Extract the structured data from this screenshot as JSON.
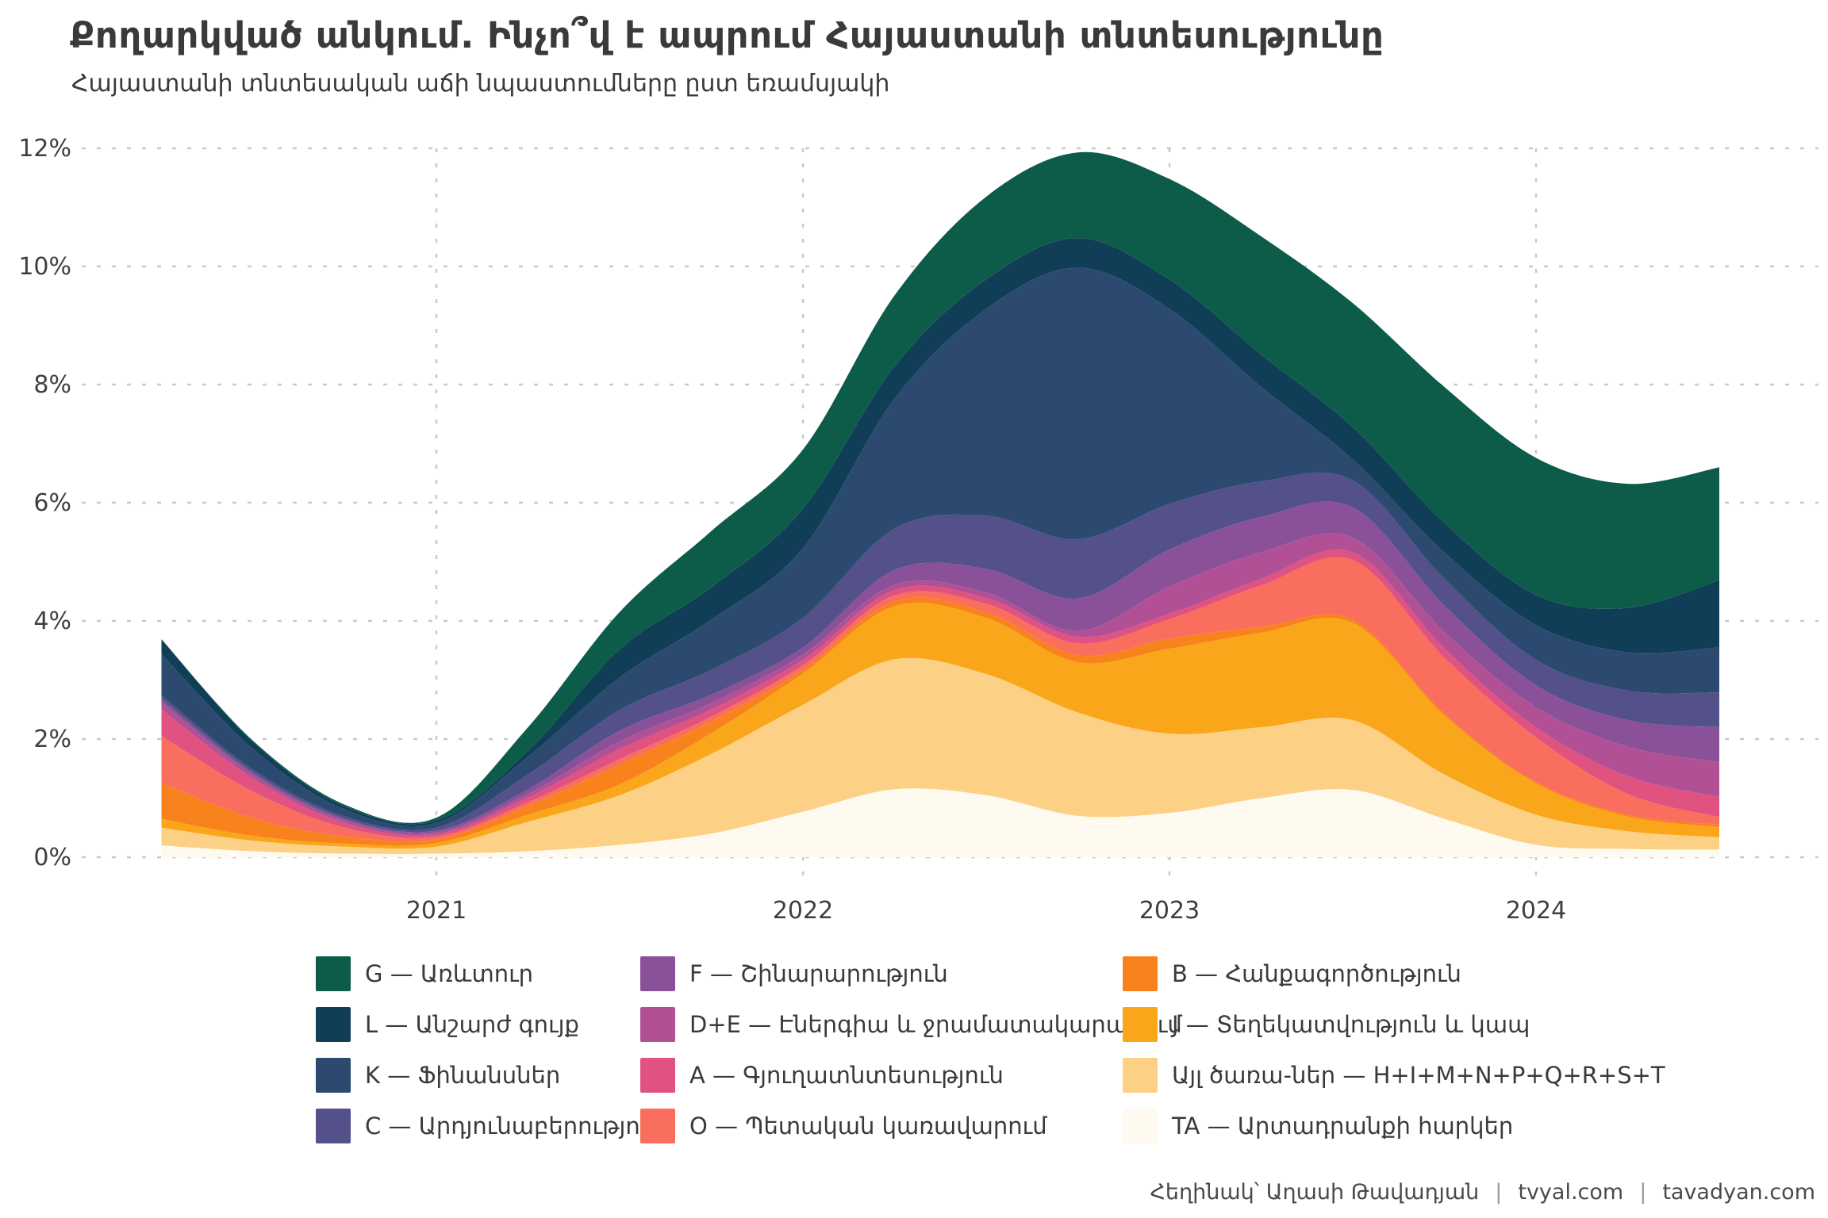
{
  "title": "Քողարկված անկում. Ինչո՞վ է ապրում Հայաստանի տնտեսությունը",
  "subtitle": "Հայաստանի տնտեսական աճի նպաստումները ըստ եռամսյակի",
  "footer": {
    "author": "Հեղինակ՝ Աղասի Թավադյան",
    "site1": "tvyal.com",
    "site2": "tavadyan.com"
  },
  "chart_data": {
    "type": "area",
    "stacked": true,
    "grid": "dotted",
    "x": [
      2020.25,
      2020.5,
      2020.75,
      2021.0,
      2021.25,
      2021.5,
      2021.75,
      2022.0,
      2022.25,
      2022.5,
      2022.75,
      2023.0,
      2023.25,
      2023.5,
      2023.75,
      2024.0,
      2024.25,
      2024.5
    ],
    "xlim": [
      2020.25,
      2024.5
    ],
    "ylim": [
      0,
      12
    ],
    "y_ticks": [
      {
        "value": 0,
        "label": "0%"
      },
      {
        "value": 2,
        "label": "2%"
      },
      {
        "value": 4,
        "label": "4%"
      },
      {
        "value": 6,
        "label": "6%"
      },
      {
        "value": 8,
        "label": "8%"
      },
      {
        "value": 10,
        "label": "10%"
      },
      {
        "value": 12,
        "label": "12%"
      }
    ],
    "x_ticks": [
      {
        "value": 2021,
        "label": "2021"
      },
      {
        "value": 2022,
        "label": "2022"
      },
      {
        "value": 2023,
        "label": "2023"
      },
      {
        "value": 2024,
        "label": "2024"
      }
    ],
    "series": [
      {
        "id": "TA",
        "label": "TA — Արտադրանքի հարկեր",
        "color": "#fffaf0",
        "values": [
          0.2,
          0.1,
          0.06,
          0.06,
          0.1,
          0.21,
          0.4,
          0.77,
          1.15,
          1.05,
          0.7,
          0.75,
          1.0,
          1.14,
          0.65,
          0.21,
          0.14,
          0.13
        ]
      },
      {
        "id": "OTHER",
        "label": "Այլ ծառա-ներ — H+I+M+N+P+Q+R+S+T",
        "color": "#fdd185",
        "values": [
          0.3,
          0.18,
          0.12,
          0.12,
          0.5,
          0.84,
          1.35,
          1.81,
          2.2,
          2.05,
          1.75,
          1.34,
          1.2,
          1.18,
          0.75,
          0.51,
          0.3,
          0.21
        ]
      },
      {
        "id": "J",
        "label": "J — Տեղեկատվություն և կապ",
        "color": "#faa61a",
        "values": [
          0.15,
          0.08,
          0.05,
          0.06,
          0.12,
          0.18,
          0.35,
          0.53,
          0.9,
          0.95,
          0.85,
          1.44,
          1.6,
          1.65,
          1.0,
          0.53,
          0.25,
          0.17
        ]
      },
      {
        "id": "B",
        "label": "B — Հանքագործություն",
        "color": "#f8831d",
        "values": [
          0.6,
          0.3,
          0.12,
          0.06,
          0.15,
          0.34,
          0.2,
          0.06,
          0.08,
          0.1,
          0.12,
          0.17,
          0.1,
          0.05,
          0.03,
          0.02,
          0.03,
          0.04
        ]
      },
      {
        "id": "O",
        "label": "O — Պետական կառավարում",
        "color": "#f96e5c",
        "values": [
          0.8,
          0.45,
          0.15,
          0.05,
          0.06,
          0.09,
          0.08,
          0.08,
          0.1,
          0.14,
          0.2,
          0.33,
          0.7,
          1.01,
          0.95,
          0.76,
          0.35,
          0.13
        ]
      },
      {
        "id": "A",
        "label": "A — Գյուղատնտեսություն",
        "color": "#e0527f",
        "values": [
          0.45,
          0.22,
          0.08,
          0.04,
          0.08,
          0.17,
          0.12,
          0.09,
          0.09,
          0.1,
          0.11,
          0.09,
          0.11,
          0.13,
          0.15,
          0.17,
          0.3,
          0.34
        ]
      },
      {
        "id": "DE",
        "label": "D+E — Էներգիա և ջրամատակարարում",
        "color": "#b25096",
        "values": [
          0.12,
          0.06,
          0.04,
          0.03,
          0.06,
          0.13,
          0.11,
          0.09,
          0.09,
          0.09,
          0.1,
          0.46,
          0.45,
          0.25,
          0.28,
          0.34,
          0.5,
          0.59
        ]
      },
      {
        "id": "F",
        "label": "F — Շինարարություն",
        "color": "#8a5198",
        "values": [
          0.06,
          0.04,
          0.03,
          0.03,
          0.08,
          0.18,
          0.14,
          0.12,
          0.25,
          0.4,
          0.55,
          0.63,
          0.6,
          0.51,
          0.45,
          0.37,
          0.45,
          0.59
        ]
      },
      {
        "id": "C",
        "label": "C — Արդյունաբերություն",
        "color": "#54508a",
        "values": [
          0.06,
          0.05,
          0.04,
          0.05,
          0.25,
          0.35,
          0.42,
          0.5,
          0.7,
          0.9,
          1.0,
          0.77,
          0.6,
          0.46,
          0.45,
          0.43,
          0.5,
          0.59
        ]
      },
      {
        "id": "K",
        "label": "K — Ֆինանսներ",
        "color": "#2c4a70",
        "values": [
          0.7,
          0.35,
          0.12,
          0.08,
          0.3,
          0.55,
          0.85,
          1.18,
          2.2,
          3.5,
          4.6,
          3.3,
          1.6,
          0.35,
          0.45,
          0.59,
          0.65,
          0.76
        ]
      },
      {
        "id": "L",
        "label": "L — Անշարժ գույք",
        "color": "#113e57",
        "values": [
          0.25,
          0.12,
          0.05,
          0.04,
          0.1,
          0.48,
          0.55,
          0.67,
          0.55,
          0.5,
          0.5,
          0.5,
          0.55,
          0.55,
          0.5,
          0.51,
          0.75,
          1.14
        ]
      },
      {
        "id": "G",
        "label": "G — Առևտուր",
        "color": "#0d5c49",
        "values": [
          0.0,
          0.02,
          0.03,
          0.05,
          0.4,
          0.63,
          0.95,
          1.0,
          1.2,
          1.4,
          1.45,
          1.7,
          2.0,
          2.1,
          2.3,
          2.32,
          2.1,
          1.91
        ]
      }
    ],
    "legend_columns": [
      [
        "G",
        "L",
        "K",
        "C"
      ],
      [
        "F",
        "DE",
        "A",
        "O"
      ],
      [
        "B",
        "J",
        "OTHER",
        "TA"
      ]
    ]
  }
}
